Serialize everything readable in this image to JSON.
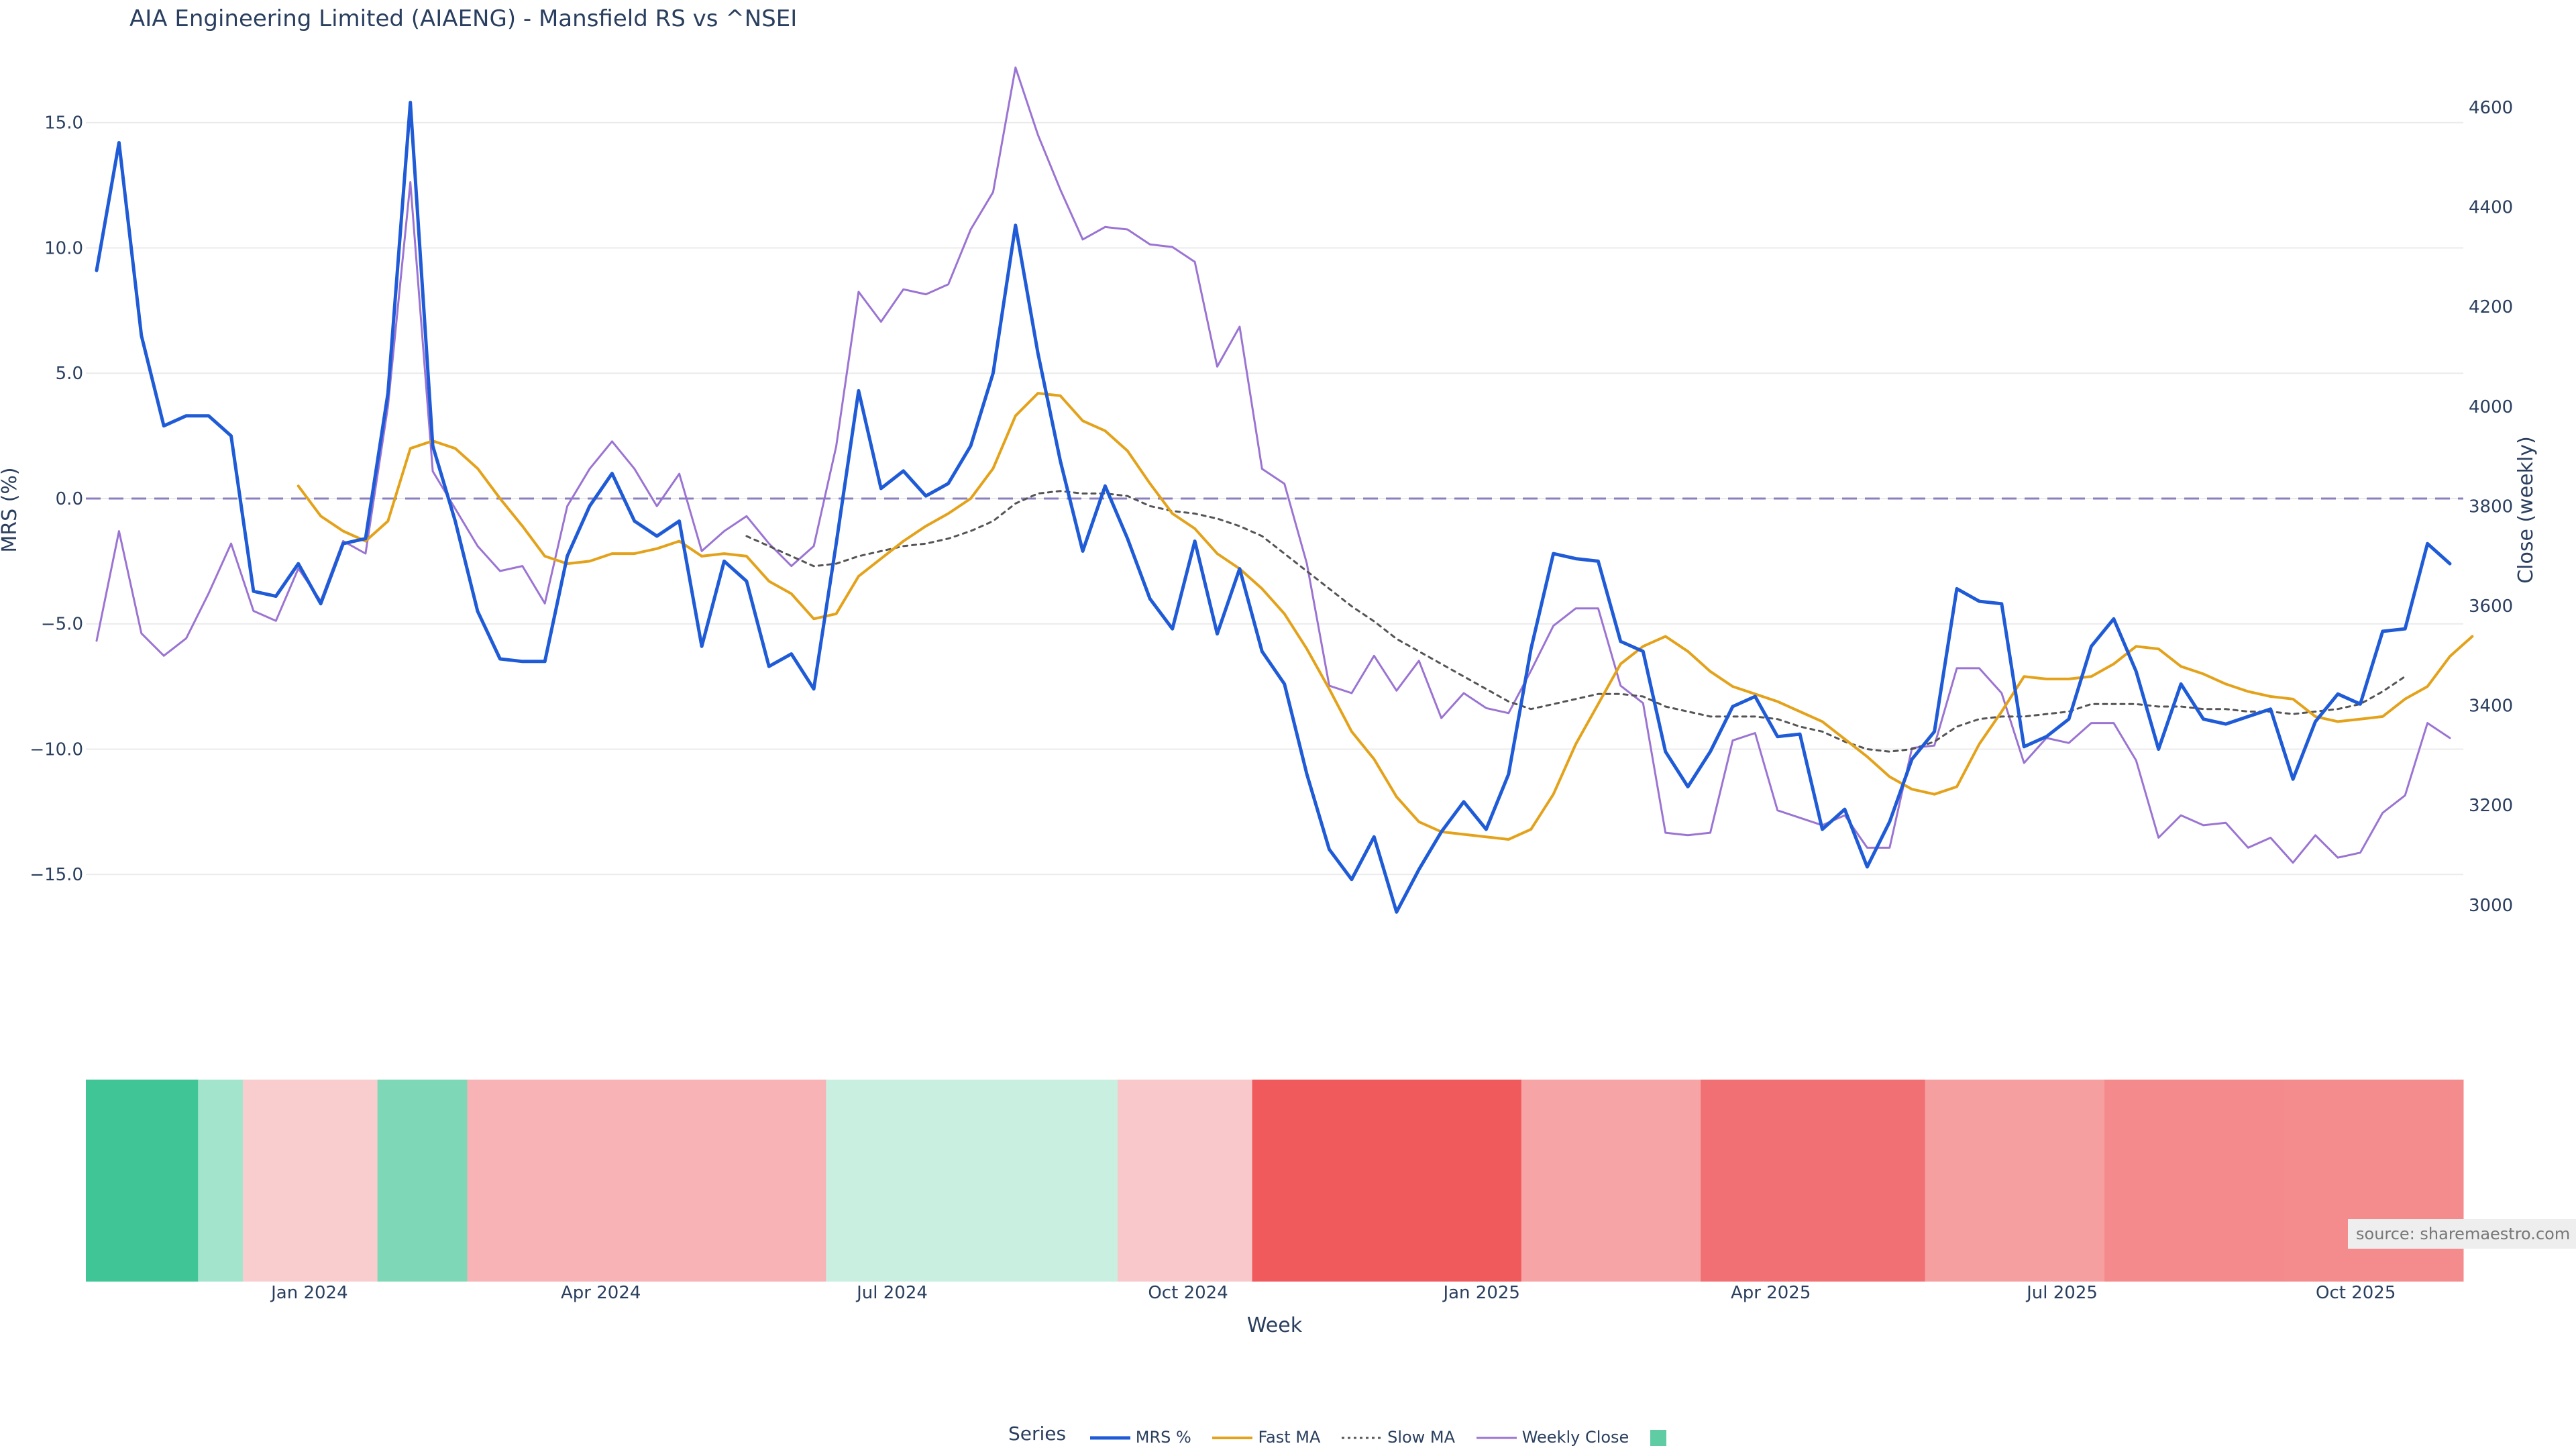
{
  "title": "AIA Engineering Limited (AIAENG) - Mansfield RS vs ^NSEI",
  "source_label": "source: sharemaestro.com",
  "legend": {
    "title": "Series",
    "items": [
      {
        "label": "MRS %",
        "color": "#1f5bd6",
        "style": "solid"
      },
      {
        "label": "Fast MA",
        "color": "#e3a21a",
        "style": "solid"
      },
      {
        "label": "Slow MA",
        "color": "#555555",
        "style": "dotted"
      },
      {
        "label": "Weekly Close",
        "color": "#9b74d3",
        "style": "solid"
      },
      {
        "label": "",
        "color": "#5fcca3",
        "style": "swatch"
      }
    ]
  },
  "chart_data": {
    "type": "line",
    "title": "AIA Engineering Limited (AIAENG) - Mansfield RS vs ^NSEI",
    "xlabel": "Week",
    "ylabel_left": "MRS (%)",
    "ylabel_right": "Close (weekly)",
    "ylim_left": [
      -20,
      17
    ],
    "ylim_right": [
      2810,
      4670
    ],
    "yticks_left": [
      {
        "value": 15,
        "label": "15.0"
      },
      {
        "value": 10,
        "label": "10.0"
      },
      {
        "value": 5,
        "label": "5.0"
      },
      {
        "value": 0,
        "label": "0.0"
      },
      {
        "value": -5,
        "label": "−5.0"
      },
      {
        "value": -10,
        "label": "−10.0"
      },
      {
        "value": -15,
        "label": "−15.0"
      }
    ],
    "yticks_right": [
      {
        "value": 4600,
        "label": "4600"
      },
      {
        "value": 4400,
        "label": "4400"
      },
      {
        "value": 4200,
        "label": "4200"
      },
      {
        "value": 4000,
        "label": "4000"
      },
      {
        "value": 3800,
        "label": "3800"
      },
      {
        "value": 3600,
        "label": "3600"
      },
      {
        "value": 3400,
        "label": "3400"
      },
      {
        "value": 3200,
        "label": "3200"
      },
      {
        "value": 3000,
        "label": "3000"
      }
    ],
    "xticks": [
      {
        "week": 9.5,
        "label": "Jan 2024"
      },
      {
        "week": 22.5,
        "label": "Apr 2024"
      },
      {
        "week": 35.5,
        "label": "Jul 2024"
      },
      {
        "week": 48.7,
        "label": "Oct 2024"
      },
      {
        "week": 61.8,
        "label": "Jan 2025"
      },
      {
        "week": 74.7,
        "label": "Apr 2025"
      },
      {
        "week": 87.7,
        "label": "Jul 2025"
      },
      {
        "week": 100.8,
        "label": "Oct 2025"
      }
    ],
    "zero_line": 0,
    "series": [
      {
        "name": "MRS %",
        "color": "#1f5bd6",
        "start_week": 0,
        "values": [
          9.1,
          14.2,
          6.5,
          2.9,
          3.3,
          3.3,
          2.5,
          -3.7,
          -3.9,
          -2.6,
          -4.2,
          -1.8,
          -1.6,
          4.2,
          15.8,
          2.1,
          -0.9,
          -4.5,
          -6.4,
          -6.5,
          -6.5,
          -2.3,
          -0.3,
          1.0,
          -0.9,
          -1.5,
          -0.9,
          -5.9,
          -2.5,
          -3.3,
          -6.7,
          -6.2,
          -7.6,
          -1.8,
          4.3,
          0.4,
          1.1,
          0.1,
          0.6,
          2.1,
          5.0,
          10.9,
          5.8,
          1.5,
          -2.1,
          0.5,
          -1.6,
          -4.0,
          -5.2,
          -1.7,
          -5.4,
          -2.8,
          -6.1,
          -7.4,
          -11.0,
          -14.0,
          -15.2,
          -13.5,
          -16.5,
          -14.8,
          -13.3,
          -12.1,
          -13.2,
          -11.0,
          -6.0,
          -2.2,
          -2.4,
          -2.5,
          -5.7,
          -6.1,
          -10.1,
          -11.5,
          -10.1,
          -8.3,
          -7.9,
          -9.5,
          -9.4,
          -13.2,
          -12.4,
          -14.7,
          -12.9,
          -10.4,
          -9.3,
          -3.6,
          -4.1,
          -4.2,
          -9.9,
          -9.5,
          -8.8,
          -5.9,
          -4.8,
          -6.9,
          -10.0,
          -7.4,
          -8.8,
          -9.0,
          -8.7,
          -8.4,
          -11.2,
          -8.9,
          -7.8,
          -8.2,
          -5.3,
          -5.2,
          -1.8,
          -2.6
        ]
      },
      {
        "name": "Fast MA",
        "color": "#e3a21a",
        "start_week": 9,
        "values": [
          0.5,
          -0.7,
          -1.3,
          -1.7,
          -0.9,
          2.0,
          2.3,
          2.0,
          1.2,
          0.0,
          -1.1,
          -2.3,
          -2.6,
          -2.5,
          -2.2,
          -2.2,
          -2.0,
          -1.7,
          -2.3,
          -2.2,
          -2.3,
          -3.3,
          -3.8,
          -4.8,
          -4.6,
          -3.1,
          -2.4,
          -1.7,
          -1.1,
          -0.6,
          0.0,
          1.2,
          3.3,
          4.2,
          4.1,
          3.1,
          2.7,
          1.9,
          0.6,
          -0.6,
          -1.2,
          -2.2,
          -2.8,
          -3.6,
          -4.6,
          -6.0,
          -7.6,
          -9.3,
          -10.4,
          -11.9,
          -12.9,
          -13.3,
          -13.4,
          -13.5,
          -13.6,
          -13.2,
          -11.8,
          -9.8,
          -8.2,
          -6.6,
          -5.9,
          -5.5,
          -6.1,
          -6.9,
          -7.5,
          -7.8,
          -8.1,
          -8.5,
          -8.9,
          -9.6,
          -10.3,
          -11.1,
          -11.6,
          -11.8,
          -11.5,
          -9.8,
          -8.5,
          -7.1,
          -7.2,
          -7.2,
          -7.1,
          -6.6,
          -5.9,
          -6.0,
          -6.7,
          -7.0,
          -7.4,
          -7.7,
          -7.9,
          -8.0,
          -8.7,
          -8.9,
          -8.8,
          -8.7,
          -8.0,
          -7.5,
          -6.3,
          -5.5
        ]
      },
      {
        "name": "Slow MA",
        "color": "#555555",
        "start_week": 29,
        "values": [
          -1.5,
          -1.9,
          -2.3,
          -2.7,
          -2.6,
          -2.3,
          -2.1,
          -1.9,
          -1.8,
          -1.6,
          -1.3,
          -0.9,
          -0.2,
          0.2,
          0.3,
          0.2,
          0.2,
          0.1,
          -0.3,
          -0.5,
          -0.6,
          -0.8,
          -1.1,
          -1.5,
          -2.2,
          -2.9,
          -3.6,
          -4.3,
          -4.9,
          -5.6,
          -6.1,
          -6.6,
          -7.1,
          -7.6,
          -8.1,
          -8.4,
          -8.2,
          -8.0,
          -7.8,
          -7.8,
          -7.9,
          -8.3,
          -8.5,
          -8.7,
          -8.7,
          -8.7,
          -8.8,
          -9.1,
          -9.3,
          -9.7,
          -10.0,
          -10.1,
          -10.0,
          -9.7,
          -9.1,
          -8.8,
          -8.7,
          -8.7,
          -8.6,
          -8.5,
          -8.2,
          -8.2,
          -8.2,
          -8.3,
          -8.3,
          -8.4,
          -8.4,
          -8.5,
          -8.5,
          -8.6,
          -8.5,
          -8.4,
          -8.2,
          -7.7,
          -7.1
        ]
      },
      {
        "name": "Weekly Close",
        "color": "#9b74d3",
        "axis": "right",
        "start_week": 0,
        "values": [
          3530,
          3750,
          3545,
          3500,
          3535,
          3625,
          3725,
          3590,
          3570,
          3675,
          3610,
          3730,
          3705,
          4000,
          4450,
          3870,
          3795,
          3720,
          3670,
          3680,
          3605,
          3800,
          3875,
          3930,
          3875,
          3800,
          3865,
          3710,
          3750,
          3780,
          3725,
          3680,
          3720,
          3920,
          4230,
          4170,
          4235,
          4225,
          4245,
          4355,
          4430,
          4680,
          4545,
          4435,
          4335,
          4360,
          4355,
          4325,
          4320,
          4290,
          4080,
          4160,
          3875,
          3845,
          3685,
          3440,
          3425,
          3500,
          3430,
          3490,
          3375,
          3425,
          3395,
          3385,
          3470,
          3560,
          3595,
          3595,
          3440,
          3405,
          3145,
          3140,
          3145,
          3330,
          3345,
          3190,
          3175,
          3160,
          3180,
          3115,
          3115,
          3315,
          3320,
          3475,
          3475,
          3425,
          3285,
          3335,
          3325,
          3365,
          3365,
          3290,
          3135,
          3180,
          3160,
          3165,
          3115,
          3135,
          3085,
          3140,
          3095,
          3105,
          3185,
          3220,
          3365,
          3335
        ]
      }
    ],
    "heatmap": {
      "label": "MRS % color strip (weekly)",
      "bands": [
        {
          "week_start": 0,
          "week_end": 5,
          "color": "#3fc596"
        },
        {
          "week_start": 5,
          "week_end": 7,
          "color": "#a3e4cd"
        },
        {
          "week_start": 7,
          "week_end": 13,
          "color": "#f9cdce"
        },
        {
          "week_start": 13,
          "week_end": 17,
          "color": "#7ed8b7"
        },
        {
          "week_start": 17,
          "week_end": 33,
          "color": "#f7b3b5"
        },
        {
          "week_start": 33,
          "week_end": 46,
          "color": "#c9efe1"
        },
        {
          "week_start": 46,
          "week_end": 52,
          "color": "#f9c8ca"
        },
        {
          "week_start": 52,
          "week_end": 64,
          "color": "#f05a5d"
        },
        {
          "week_start": 64,
          "week_end": 72,
          "color": "#f6a4a6"
        },
        {
          "week_start": 72,
          "week_end": 82,
          "color": "#f07073"
        },
        {
          "week_start": 82,
          "week_end": 90,
          "color": "#f59fa1"
        },
        {
          "week_start": 90,
          "week_end": 98,
          "color": "#f48a8c"
        },
        {
          "week_start": 98,
          "week_end": 106,
          "color": "#f48c8e"
        }
      ]
    }
  }
}
